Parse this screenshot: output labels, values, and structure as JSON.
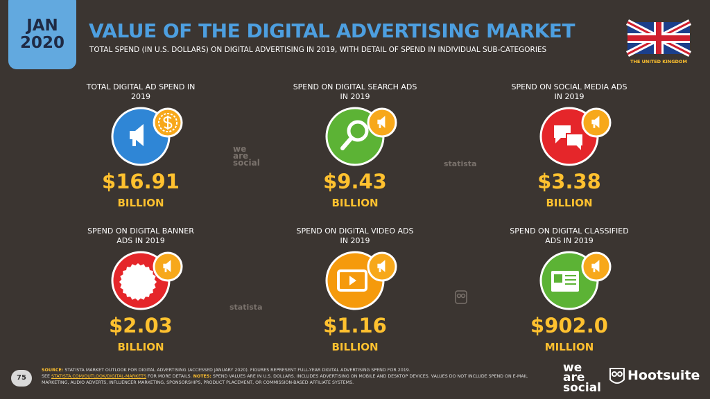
{
  "badge": {
    "month": "JAN",
    "year": "2020"
  },
  "header": {
    "title": "VALUE OF THE DIGITAL ADVERTISING MARKET",
    "subtitle": "TOTAL SPEND (IN U.S. DOLLARS) ON DIGITAL ADVERTISING IN 2019, WITH DETAIL OF SPEND IN INDIVIDUAL SUB-CATEGORIES",
    "country": "THE UNITED KINGDOM"
  },
  "cards": [
    {
      "label": "TOTAL DIGITAL AD SPEND IN 2019",
      "value": "$16.91",
      "unit": "BILLION",
      "color": "#2f86d6",
      "icon": "total"
    },
    {
      "label": "SPEND ON DIGITAL SEARCH ADS IN 2019",
      "value": "$9.43",
      "unit": "BILLION",
      "color": "#5cb335",
      "icon": "search"
    },
    {
      "label": "SPEND ON SOCIAL MEDIA ADS IN 2019",
      "value": "$3.38",
      "unit": "BILLION",
      "color": "#e5262a",
      "icon": "social"
    },
    {
      "label": "SPEND ON DIGITAL BANNER ADS IN 2019",
      "value": "$2.03",
      "unit": "BILLION",
      "color": "#e5262a",
      "icon": "banner"
    },
    {
      "label": "SPEND ON DIGITAL VIDEO ADS IN 2019",
      "value": "$1.16",
      "unit": "BILLION",
      "color": "#f59a0c",
      "icon": "video"
    },
    {
      "label": "SPEND ON DIGITAL CLASSIFIED ADS IN 2019",
      "value": "$902.0",
      "unit": "MILLION",
      "color": "#5cb335",
      "icon": "classified"
    }
  ],
  "watermarks": {
    "was": [
      "we",
      "are",
      "social"
    ],
    "statista": "statista"
  },
  "footer": {
    "page": "75",
    "source_label": "SOURCE:",
    "source_text": "STATISTA MARKET OUTLOOK FOR DIGITAL ADVERTISING (ACCESSED JANUARY 2020). FIGURES REPRESENT FULL-YEAR DIGITAL ADVERTISING SPEND FOR 2019.",
    "see": "SEE",
    "link": "STATISTA.COM/OUTLOOK/DIGITAL-MARKETS",
    "link_after": "FOR MORE DETAILS.",
    "notes_label": "NOTES:",
    "notes_text": "SPEND VALUES ARE IN U.S. DOLLARS. INCLUDES ADVERTISING ON MOBILE AND DESKTOP DEVICES. VALUES DO NOT INCLUDE SPEND ON E-MAIL MARKETING, AUDIO ADVERTS, INFLUENCER MARKETING, SPONSORSHIPS, PRODUCT PLACEMENT, OR COMMISSION-BASED AFFILIATE SYSTEMS.",
    "logo_was": [
      "we",
      "are",
      "social"
    ],
    "logo_hootsuite": "Hootsuite"
  }
}
